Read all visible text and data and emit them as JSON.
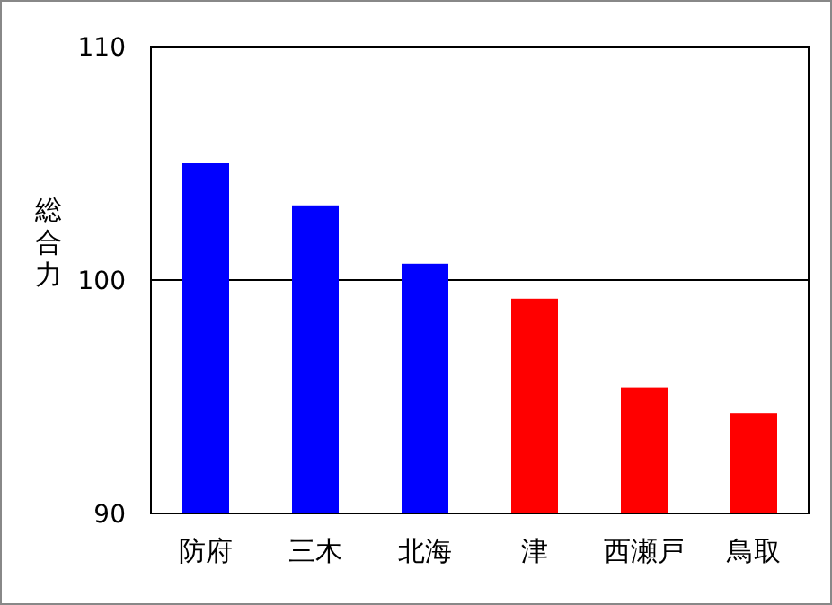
{
  "chart_data": {
    "type": "bar",
    "ylabel": "総合力",
    "categories": [
      "防府",
      "三木",
      "北海",
      "津",
      "西瀬戸",
      "鳥取"
    ],
    "values": [
      105.0,
      103.2,
      100.7,
      99.2,
      95.4,
      94.3
    ],
    "colors": [
      "#0000ff",
      "#0000ff",
      "#0000ff",
      "#ff0000",
      "#ff0000",
      "#ff0000"
    ],
    "ylim": [
      90,
      110
    ],
    "yticks": [
      90,
      100,
      110
    ],
    "grid": "y"
  }
}
